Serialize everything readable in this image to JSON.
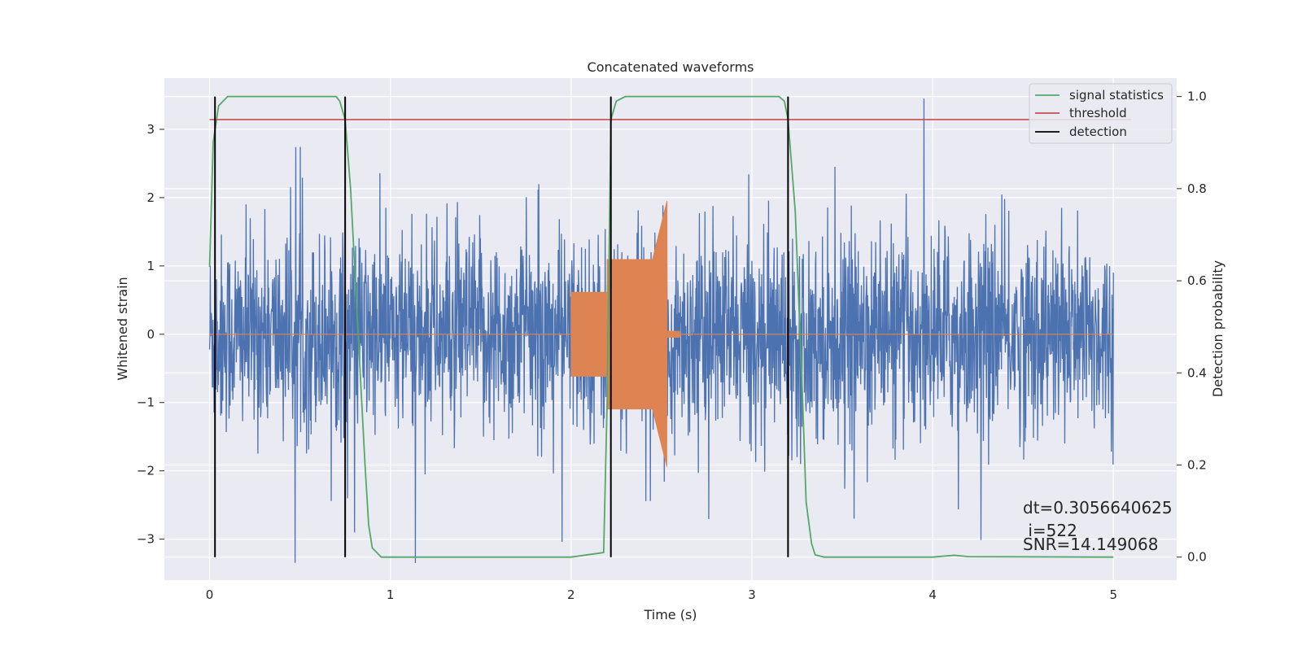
{
  "chart_data": {
    "type": "line",
    "title": "Concatenated waveforms",
    "xlabel": "Time (s)",
    "ylabel": "Whitened strain",
    "y2label": "Detection probability",
    "xlim": [
      -0.25,
      5.35
    ],
    "ylim": [
      -3.6,
      3.75
    ],
    "y2lim": [
      -0.05,
      1.04
    ],
    "xticks": [
      0,
      1,
      2,
      3,
      4,
      5
    ],
    "yticks": [
      -3,
      -2,
      -1,
      0,
      1,
      2,
      3
    ],
    "y2ticks": [
      0.0,
      0.2,
      0.4,
      0.6,
      0.8,
      1.0
    ],
    "xtick_labels": [
      "0",
      "1",
      "2",
      "3",
      "4",
      "5"
    ],
    "ytick_labels": [
      "−3",
      "−2",
      "−1",
      "0",
      "1",
      "2",
      "3"
    ],
    "y2tick_labels": [
      "0.0",
      "0.2",
      "0.4",
      "0.6",
      "0.8",
      "1.0"
    ],
    "grid": true,
    "legend_position": "top-right",
    "legend": [
      "signal statistics",
      "threshold",
      "detection"
    ],
    "series": [
      {
        "name": "",
        "color": "#4c72b0",
        "axis": "left",
        "description_range": [
          0,
          5
        ],
        "noise_amplitude": 1.0
      },
      {
        "name": "",
        "color": "#dd8452",
        "axis": "left",
        "chirp": {
          "segments": [
            {
              "x_start": 0.0,
              "x_end": 2.0,
              "amplitude": 0.0
            },
            {
              "x_start": 2.0,
              "x_end": 2.2,
              "amplitude": 0.62
            },
            {
              "x_start": 2.2,
              "x_end": 2.45,
              "amplitude": 1.1
            },
            {
              "x_start": 2.45,
              "x_end": 2.53,
              "amplitude": 1.95
            },
            {
              "x_start": 2.53,
              "x_end": 2.6,
              "amplitude": 0.05
            },
            {
              "x_start": 2.6,
              "x_end": 5.0,
              "amplitude": 0.0
            }
          ]
        }
      },
      {
        "name": "signal statistics",
        "color": "#55a868",
        "axis": "right",
        "x": [
          0.0,
          0.02,
          0.05,
          0.1,
          0.2,
          0.7,
          0.72,
          0.75,
          0.78,
          0.82,
          0.86,
          0.88,
          0.9,
          0.95,
          1.0,
          2.0,
          2.18,
          2.2,
          2.22,
          2.25,
          2.3,
          2.5,
          3.15,
          3.18,
          3.2,
          3.24,
          3.28,
          3.3,
          3.33,
          3.35,
          3.4,
          4.0,
          4.12,
          4.2,
          5.0
        ],
        "y": [
          0.63,
          0.9,
          0.98,
          1.0,
          1.0,
          1.0,
          0.99,
          0.95,
          0.8,
          0.5,
          0.2,
          0.07,
          0.02,
          0.0,
          0.0,
          0.0,
          0.01,
          0.35,
          0.95,
          0.99,
          1.0,
          1.0,
          1.0,
          0.99,
          0.95,
          0.75,
          0.35,
          0.12,
          0.03,
          0.005,
          0.0,
          0.0,
          0.004,
          0.001,
          0.0
        ]
      },
      {
        "name": "threshold",
        "color": "#c44e52",
        "axis": "right",
        "x": [
          0.0,
          5.1
        ],
        "y": [
          0.95,
          0.95
        ]
      },
      {
        "name": "detection",
        "color": "#000000",
        "axis": "right",
        "x": [
          0.03,
          0.75,
          2.22,
          3.2
        ],
        "y_range": [
          0.0,
          1.0
        ]
      }
    ],
    "annotations": [
      "dt=0.3056640625",
      " i=522",
      "SNR=14.149068"
    ]
  }
}
